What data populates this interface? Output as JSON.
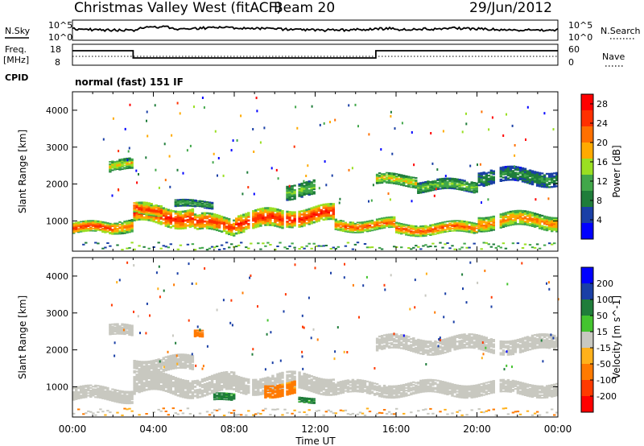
{
  "header": {
    "title": "Christmas Valley West (fitACF)",
    "beam": "Beam 20",
    "date": "29/Jun/2012"
  },
  "params": {
    "nsky_label": "N.Sky",
    "nsearch_label": "N.Search",
    "freq_label": "Freq.",
    "freq_unit": "[MHz]",
    "nave_label": "Nave",
    "cpid_label": "CPID",
    "cpid_value": "normal (fast) 151 IF",
    "noise_ticks": [
      "10^5",
      "10^0"
    ],
    "freq_ticks": [
      "18",
      "8"
    ],
    "nave_ticks": [
      "60",
      "0"
    ]
  },
  "colors": {
    "power": [
      "#0000ff",
      "#1a3fa6",
      "#1f7d3a",
      "#41a74a",
      "#9adf22",
      "#ffaa00",
      "#ff7000",
      "#ff3000",
      "#ff0000"
    ],
    "velocity": [
      "#0000ff",
      "#1a3fa6",
      "#1f7d3a",
      "#44c42f",
      "#c8c8c0",
      "#ffb11b",
      "#ff7a00",
      "#ff3a00",
      "#ff0000"
    ]
  },
  "chart_data": [
    {
      "type": "heatmap",
      "title": "Power",
      "xlabel": "Time UT",
      "ylabel": "Slant Range [km]",
      "xticks": [
        "00:00",
        "04:00",
        "08:00",
        "12:00",
        "16:00",
        "20:00",
        "00:00"
      ],
      "yticks": [
        1000,
        2000,
        3000,
        4000
      ],
      "xlim": [
        0,
        24
      ],
      "ylim": [
        180,
        4500
      ],
      "colorbar_label": "Power [dB]",
      "colorbar_ticks": [
        4,
        8,
        12,
        16,
        20,
        24,
        28
      ],
      "colorbar_range": [
        0,
        30
      ],
      "bands": [
        {
          "start": 0.0,
          "end": 2.0,
          "center": 800,
          "width": 300,
          "value": 26
        },
        {
          "start": 2.0,
          "end": 3.0,
          "center": 900,
          "width": 350,
          "value": 22
        },
        {
          "start": 3.0,
          "end": 6.0,
          "center": 1150,
          "width": 500,
          "value": 28
        },
        {
          "start": 6.0,
          "end": 8.0,
          "center": 900,
          "width": 450,
          "value": 26
        },
        {
          "start": 8.0,
          "end": 10.5,
          "center": 1000,
          "width": 500,
          "value": 27
        },
        {
          "start": 10.5,
          "end": 13.0,
          "center": 1150,
          "width": 450,
          "value": 28
        },
        {
          "start": 13.0,
          "end": 16.0,
          "center": 900,
          "width": 300,
          "value": 24
        },
        {
          "start": 16.0,
          "end": 20.0,
          "center": 800,
          "width": 300,
          "value": 24
        },
        {
          "start": 20.0,
          "end": 24.0,
          "center": 1000,
          "width": 400,
          "value": 22
        },
        {
          "start": 1.8,
          "end": 3.0,
          "center": 2500,
          "width": 300,
          "value": 18
        },
        {
          "start": 3.0,
          "end": 4.5,
          "center": 1350,
          "width": 300,
          "value": 26
        },
        {
          "start": 5.0,
          "end": 7.0,
          "center": 1450,
          "width": 200,
          "value": 12
        },
        {
          "start": 10.5,
          "end": 12.0,
          "center": 1850,
          "width": 400,
          "value": 14
        },
        {
          "start": 15.0,
          "end": 17.0,
          "center": 2100,
          "width": 300,
          "value": 18
        },
        {
          "start": 17.0,
          "end": 20.0,
          "center": 1950,
          "width": 300,
          "value": 14
        },
        {
          "start": 20.0,
          "end": 24.0,
          "center": 2200,
          "width": 400,
          "value": 10
        }
      ]
    },
    {
      "type": "heatmap",
      "title": "Velocity",
      "xlabel": "Time UT",
      "ylabel": "Slant Range [km]",
      "xticks": [
        "00:00",
        "04:00",
        "08:00",
        "12:00",
        "16:00",
        "20:00",
        "00:00"
      ],
      "yticks": [
        1000,
        2000,
        3000,
        4000
      ],
      "xlim": [
        0,
        24
      ],
      "ylim": [
        180,
        4500
      ],
      "colorbar_label": "Velocity [m s^-1]",
      "colorbar_ticks": [
        200,
        100,
        50,
        15,
        -15,
        -50,
        -100,
        -200
      ],
      "bands": [
        {
          "start": 0.0,
          "end": 3.0,
          "center": 800,
          "width": 350,
          "value": 0
        },
        {
          "start": 3.0,
          "end": 8.0,
          "center": 1050,
          "width": 500,
          "value": 0
        },
        {
          "start": 8.0,
          "end": 13.0,
          "center": 1100,
          "width": 450,
          "value": 0
        },
        {
          "start": 13.0,
          "end": 24.0,
          "center": 950,
          "width": 350,
          "value": 0
        },
        {
          "start": 1.8,
          "end": 3.0,
          "center": 2500,
          "width": 300,
          "value": 0
        },
        {
          "start": 3.0,
          "end": 6.0,
          "center": 1600,
          "width": 400,
          "value": 0
        },
        {
          "start": 15.0,
          "end": 24.0,
          "center": 2150,
          "width": 400,
          "value": 0
        },
        {
          "start": 9.5,
          "end": 11.0,
          "center": 950,
          "width": 350,
          "value": -60
        },
        {
          "start": 7.0,
          "end": 8.0,
          "center": 700,
          "width": 200,
          "value": 60
        },
        {
          "start": 11.0,
          "end": 12.0,
          "center": 650,
          "width": 150,
          "value": 60
        },
        {
          "start": 6.0,
          "end": 6.5,
          "center": 2400,
          "width": 200,
          "value": -60
        }
      ]
    }
  ]
}
